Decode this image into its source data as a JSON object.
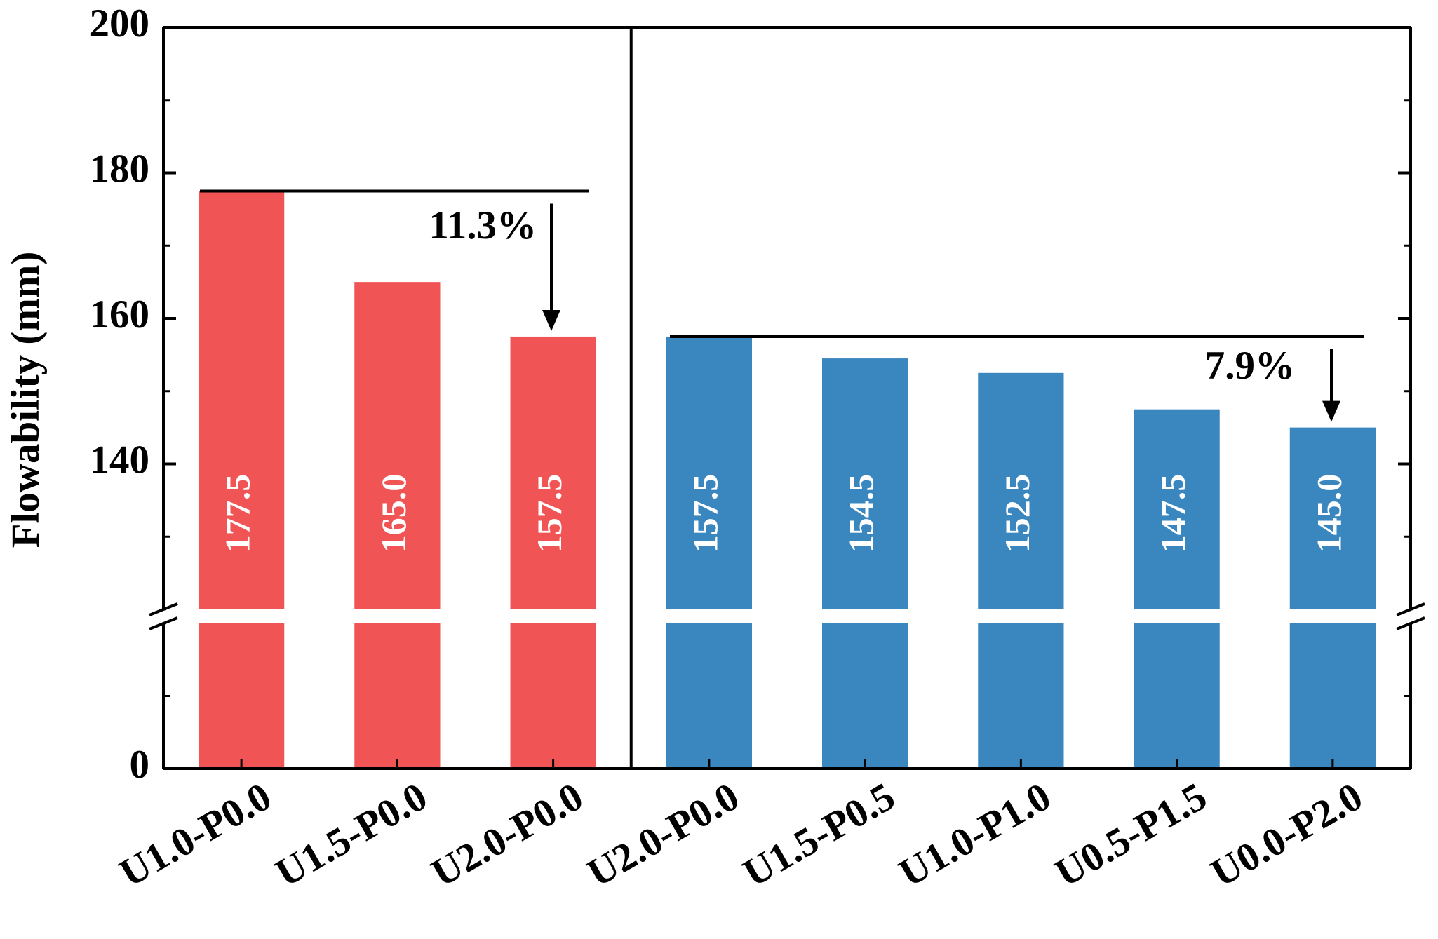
{
  "chart_data": {
    "type": "bar",
    "y_label": "Flowability (mm)",
    "categories": [
      "U1.0-P0.0",
      "U1.5-P0.0",
      "U2.0-P0.0",
      "U2.0-P0.0",
      "U1.5-P0.5",
      "U1.0-P1.0",
      "U0.5-P1.5",
      "U0.0-P2.0"
    ],
    "values": [
      177.5,
      165.0,
      157.5,
      157.5,
      154.5,
      152.5,
      147.5,
      145.0
    ],
    "value_labels": [
      "177.5",
      "165.0",
      "157.5",
      "157.5",
      "154.5",
      "152.5",
      "147.5",
      "145.0"
    ],
    "colors": [
      "#f05454",
      "#f05454",
      "#f05454",
      "#3a87bf",
      "#3a87bf",
      "#3a87bf",
      "#3a87bf",
      "#3a87bf"
    ],
    "ylim": [
      0,
      200
    ],
    "y_break": [
      20,
      120
    ],
    "yticks": [
      0,
      140,
      160,
      180,
      200
    ],
    "yminorticks": [
      10,
      130,
      150,
      170,
      190
    ],
    "annotations": [
      "11.3%",
      "7.9%"
    ]
  }
}
